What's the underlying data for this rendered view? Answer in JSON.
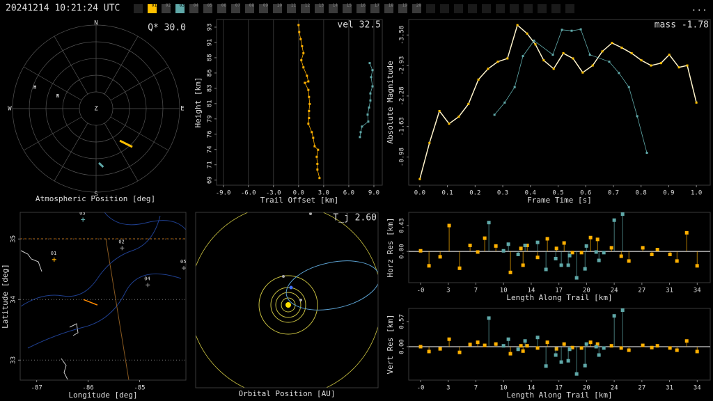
{
  "header": {
    "timestamp": "20241214 10:21:24 UTC",
    "menu": "...",
    "stations": [
      {
        "label": "01",
        "color": "#ffc000"
      },
      {
        "label": "02",
        "color": "#3a3a3a"
      },
      {
        "label": "03",
        "color": "#5fa8a8"
      },
      {
        "label": "04",
        "color": "#3a3a3a"
      },
      {
        "label": "05",
        "color": "#3a3a3a"
      },
      {
        "label": "06",
        "color": "#3a3a3a"
      },
      {
        "label": "07",
        "color": "#3a3a3a"
      },
      {
        "label": "08",
        "color": "#3a3a3a"
      },
      {
        "label": "09",
        "color": "#3a3a3a"
      },
      {
        "label": "10",
        "color": "#3a3a3a"
      },
      {
        "label": "11",
        "color": "#3a3a3a"
      },
      {
        "label": "12",
        "color": "#3a3a3a"
      },
      {
        "label": "13",
        "color": "#3a3a3a"
      },
      {
        "label": "14",
        "color": "#3a3a3a"
      },
      {
        "label": "15",
        "color": "#3a3a3a"
      },
      {
        "label": "16",
        "color": "#3a3a3a"
      },
      {
        "label": "17",
        "color": "#3a3a3a"
      },
      {
        "label": "18",
        "color": "#3a3a3a"
      },
      {
        "label": "19",
        "color": "#3a3a3a"
      },
      {
        "label": "20",
        "color": "#3a3a3a"
      }
    ]
  },
  "chart_data": [
    {
      "type": "polar",
      "title": "Atmospheric Position [deg]",
      "annotation": "Q* 30.0",
      "directions": [
        "N",
        "E",
        "S",
        "W"
      ],
      "center_label": "Z",
      "rlim": [
        0,
        90
      ],
      "markers": [
        {
          "label": "H",
          "az": 289,
          "zen": 69.7
        },
        {
          "label": "R",
          "az": 288,
          "zen": 43.4
        }
      ],
      "series": [
        {
          "color": "#ffc000",
          "az": [
            143.5,
            136.6
          ],
          "zen": [
            43,
            56.8
          ]
        },
        {
          "color": "#5fa8a8",
          "az": [
            177,
            173
          ],
          "zen": [
            58.6,
            63.4
          ]
        }
      ]
    },
    {
      "type": "line",
      "annotation": "vel 32.5",
      "x_label": "Trail Offset [km]",
      "y_label": "Height [km]",
      "grid": "vertical",
      "xlim": [
        -9.8,
        10
      ],
      "ylim": [
        68.2,
        94.2
      ],
      "xticks": [
        {
          "value": -9,
          "label": "-9.0"
        },
        {
          "value": -6,
          "label": "-6.0"
        },
        {
          "value": -3,
          "label": "-3.0"
        },
        {
          "value": 0,
          "label": "0.0"
        },
        {
          "value": 3,
          "label": "3.0"
        },
        {
          "value": 6,
          "label": "6.0"
        },
        {
          "value": 9,
          "label": "9.0"
        }
      ],
      "yticks": [
        69,
        {
          "value": 71.4,
          "label": "71"
        },
        {
          "value": 73.8,
          "label": "74"
        },
        {
          "value": 76.2,
          "label": "76"
        },
        {
          "value": 78.6,
          "label": "79"
        },
        81,
        {
          "value": 83.4,
          "label": "83"
        },
        {
          "value": 85.8,
          "label": "86"
        },
        {
          "value": 88.2,
          "label": "88"
        },
        {
          "value": 90.6,
          "label": "91"
        },
        93
      ],
      "series": [
        {
          "color": "#ffb000",
          "x": [
            0,
            0.08,
            0.25,
            0.42,
            0.58,
            0.33,
            0.58,
            1,
            1.17,
            0.75,
            1.17,
            1.25,
            1.33,
            1.25,
            1.25,
            1.17,
            1.58,
            1.75,
            1.92,
            2.33,
            2.17,
            2.25,
            2.25,
            2.5
          ],
          "values": [
            93.33,
            92.23,
            91.12,
            90.01,
            88.91,
            87.8,
            86.69,
            85.37,
            84.48,
            84.26,
            83.15,
            82.05,
            80.94,
            79.84,
            78.73,
            77.85,
            76.52,
            75.63,
            74.31,
            73.75,
            72.65,
            71.54,
            70.65,
            69.32
          ]
        },
        {
          "color": "#5fa8a8",
          "x": [
            8.5,
            8.83,
            8.67,
            8.83,
            8.58,
            8.58,
            8.42,
            8.25,
            8.33,
            7.58,
            7.42,
            7.33
          ],
          "values": [
            87.36,
            86.25,
            85.15,
            83.71,
            82.6,
            81.5,
            80.39,
            79.28,
            78.18,
            77.4,
            76.52,
            75.75
          ]
        }
      ]
    },
    {
      "type": "line",
      "annotation": "mass -1.78",
      "x_label": "Frame Time [s]",
      "y_label": "Absolute Magnitude",
      "xlim": [
        -0.04,
        1.05
      ],
      "ylim": [
        -0.38,
        -3.91
      ],
      "xticks": [
        {
          "value": 0,
          "label": "0.0"
        },
        0.1,
        0.2,
        0.3,
        0.4,
        0.5,
        0.6,
        0.7,
        0.8,
        0.9,
        {
          "value": 1,
          "label": "1.0"
        }
      ],
      "yticks": [
        -3.58,
        -2.93,
        -2.28,
        -1.63,
        -0.98
      ],
      "series": [
        {
          "color": "#ffc000",
          "line_color": "#fff4cc",
          "x": [
            0,
            0.035,
            0.071,
            0.106,
            0.141,
            0.176,
            0.212,
            0.247,
            0.282,
            0.317,
            0.353,
            0.388,
            0.418,
            0.448,
            0.484,
            0.519,
            0.554,
            0.589,
            0.625,
            0.66,
            0.695,
            0.73,
            0.766,
            0.801,
            0.836,
            0.872,
            0.902,
            0.937,
            0.967,
            1
          ],
          "values": [
            -0.51,
            -1.28,
            -1.96,
            -1.69,
            -1.84,
            -2.11,
            -2.63,
            -2.86,
            -3.01,
            -3.08,
            -3.79,
            -3.61,
            -3.38,
            -3.04,
            -2.86,
            -3.19,
            -3.08,
            -2.78,
            -2.93,
            -3.23,
            -3.41,
            -3.31,
            -3.19,
            -3.04,
            -2.93,
            -2.98,
            -3.16,
            -2.89,
            -2.93,
            -2.14
          ]
        },
        {
          "color": "#5fa8a8",
          "x": [
            0.27,
            0.307,
            0.343,
            0.373,
            0.413,
            0.481,
            0.514,
            0.549,
            0.582,
            0.615,
            0.685,
            0.72,
            0.756,
            0.786,
            0.821
          ],
          "values": [
            -1.88,
            -2.14,
            -2.47,
            -3.13,
            -3.46,
            -3.16,
            -3.69,
            -3.67,
            -3.7,
            -3.16,
            -3.01,
            -2.77,
            -2.47,
            -1.85,
            -1.07
          ]
        }
      ]
    },
    {
      "type": "map",
      "x_label": "Longitude [deg]",
      "y_label": "Latitude [deg]",
      "grid": "horizontal",
      "xlim": [
        -87.32,
        -84.1
      ],
      "ylim": [
        32.67,
        35.44
      ],
      "xticks": [
        -87,
        -86,
        -85
      ],
      "yticks": [
        33,
        34,
        35
      ],
      "stations": [
        {
          "label": "01",
          "lon": -86.66,
          "lat": 34.66,
          "color": "#ffb000"
        },
        {
          "label": "02",
          "lon": -85.34,
          "lat": 34.85,
          "color": "#888888"
        },
        {
          "label": "03",
          "lon": -86.1,
          "lat": 35.32,
          "color": "#5fa8a8"
        },
        {
          "label": "04",
          "lon": -84.84,
          "lat": 34.24,
          "color": "#888888"
        },
        {
          "label": "05",
          "lon": -84.14,
          "lat": 34.52,
          "color": "#888888"
        }
      ],
      "trail": {
        "color": "#ff8a00",
        "lon": [
          -86.09,
          -85.82
        ],
        "lat": [
          34,
          33.91
        ]
      }
    },
    {
      "type": "orbit",
      "title": "Orbital Position [AU]",
      "annotation": "T_j 2.60"
    },
    {
      "type": "stem",
      "x_label": "Length Along Trail [km]",
      "y_label": "Horz Res [km]",
      "xlim": [
        -1.46,
        35.6
      ],
      "ylim": [
        -0.52,
        0.65
      ],
      "xticks": [
        {
          "value": 0,
          "label": "-0"
        },
        {
          "value": 3.4,
          "label": "3"
        },
        {
          "value": 6.8,
          "label": "7"
        },
        {
          "value": 10.2,
          "label": "10"
        },
        {
          "value": 13.6,
          "label": "14"
        },
        17,
        {
          "value": 20.4,
          "label": "20"
        },
        {
          "value": 23.8,
          "label": "24"
        },
        {
          "value": 27.2,
          "label": "27"
        },
        {
          "value": 30.6,
          "label": "31"
        },
        34
      ],
      "yticks": [
        {
          "value": 0,
          "label": "0.00"
        },
        0.43
      ],
      "series": [
        {
          "color": "#ffb000",
          "x": [
            0,
            1.03,
            2.4,
            3.51,
            4.79,
            6.08,
            7.02,
            7.88,
            9.25,
            11.04,
            12.33,
            12.59,
            13.1,
            14.38,
            15.58,
            16.7,
            17.64,
            18.66,
            19.78,
            20.89,
            21.75,
            23.46,
            24.66,
            25.6,
            27.31,
            28.42,
            29.11,
            30.65,
            31.51,
            32.71,
            33.99
          ],
          "values": [
            0.01,
            -0.24,
            -0.09,
            0.43,
            -0.28,
            0.1,
            -0.01,
            0.22,
            0.09,
            -0.35,
            0.05,
            -0.23,
            0.1,
            -0.1,
            0.21,
            0.05,
            0.14,
            -0.02,
            -0.02,
            0.23,
            0.2,
            0.06,
            -0.08,
            -0.16,
            0.06,
            -0.05,
            0.03,
            -0.05,
            -0.16,
            0.31,
            -0.24
          ]
        },
        {
          "color": "#5fa8a8",
          "x": [
            8.39,
            10.19,
            10.79,
            11.99,
            12.84,
            14.38,
            15.41,
            16.61,
            17.29,
            18.15,
            18.32,
            19.18,
            20.21,
            20.38,
            21.58,
            21.92,
            22.52,
            23.8,
            24.83
          ],
          "values": [
            0.48,
            0.01,
            0.12,
            -0.05,
            0.1,
            0.15,
            -0.3,
            -0.12,
            -0.23,
            -0.23,
            -0.07,
            -0.44,
            -0.29,
            0.09,
            -0.01,
            -0.15,
            -0.02,
            0.52,
            0.62
          ]
        }
      ]
    },
    {
      "type": "stem",
      "x_label": "Length Along Trail [km]",
      "y_label": "Vert Res [km]",
      "xlim": [
        -1.46,
        35.6
      ],
      "ylim": [
        -0.76,
        0.87
      ],
      "xticks": [
        {
          "value": 0,
          "label": "-0"
        },
        {
          "value": 3.4,
          "label": "3"
        },
        {
          "value": 6.8,
          "label": "7"
        },
        {
          "value": 10.2,
          "label": "10"
        },
        {
          "value": 13.6,
          "label": "14"
        },
        17,
        {
          "value": 20.4,
          "label": "20"
        },
        {
          "value": 23.8,
          "label": "24"
        },
        {
          "value": 27.2,
          "label": "27"
        },
        {
          "value": 30.6,
          "label": "31"
        },
        34
      ],
      "yticks": [
        {
          "value": 0,
          "label": "0.00"
        },
        0.57
      ],
      "series": [
        {
          "color": "#ffb000",
          "x": [
            0,
            1.03,
            2.4,
            3.51,
            4.79,
            6.08,
            7.02,
            7.88,
            9.25,
            11.04,
            12.33,
            12.59,
            13.1,
            14.38,
            15.58,
            16.7,
            17.64,
            18.66,
            19.78,
            20.89,
            21.75,
            23.46,
            24.66,
            25.6,
            27.31,
            28.42,
            29.11,
            30.65,
            31.51,
            32.71,
            33.99
          ],
          "values": [
            0,
            -0.11,
            -0.05,
            0.17,
            -0.13,
            0.05,
            0.1,
            0.03,
            0.06,
            -0.16,
            0.02,
            -0.1,
            0.02,
            -0.03,
            0.1,
            -0.05,
            0.06,
            -0.02,
            -0.03,
            0.1,
            0.06,
            0.02,
            -0.03,
            -0.08,
            0.03,
            -0.02,
            0.02,
            -0.03,
            -0.08,
            0.13,
            -0.11
          ]
        },
        {
          "color": "#5fa8a8",
          "x": [
            8.39,
            10.19,
            10.79,
            11.99,
            12.84,
            14.38,
            15.41,
            16.61,
            17.29,
            18.15,
            18.32,
            19.18,
            20.21,
            20.38,
            21.58,
            21.92,
            22.52,
            23.8,
            24.83
          ],
          "values": [
            0.65,
            0.02,
            0.17,
            -0.06,
            0.13,
            0.21,
            -0.44,
            -0.19,
            -0.35,
            -0.32,
            -0.06,
            -0.62,
            -0.43,
            0.06,
            0,
            -0.19,
            -0.03,
            0.7,
            0.83
          ]
        }
      ]
    }
  ]
}
